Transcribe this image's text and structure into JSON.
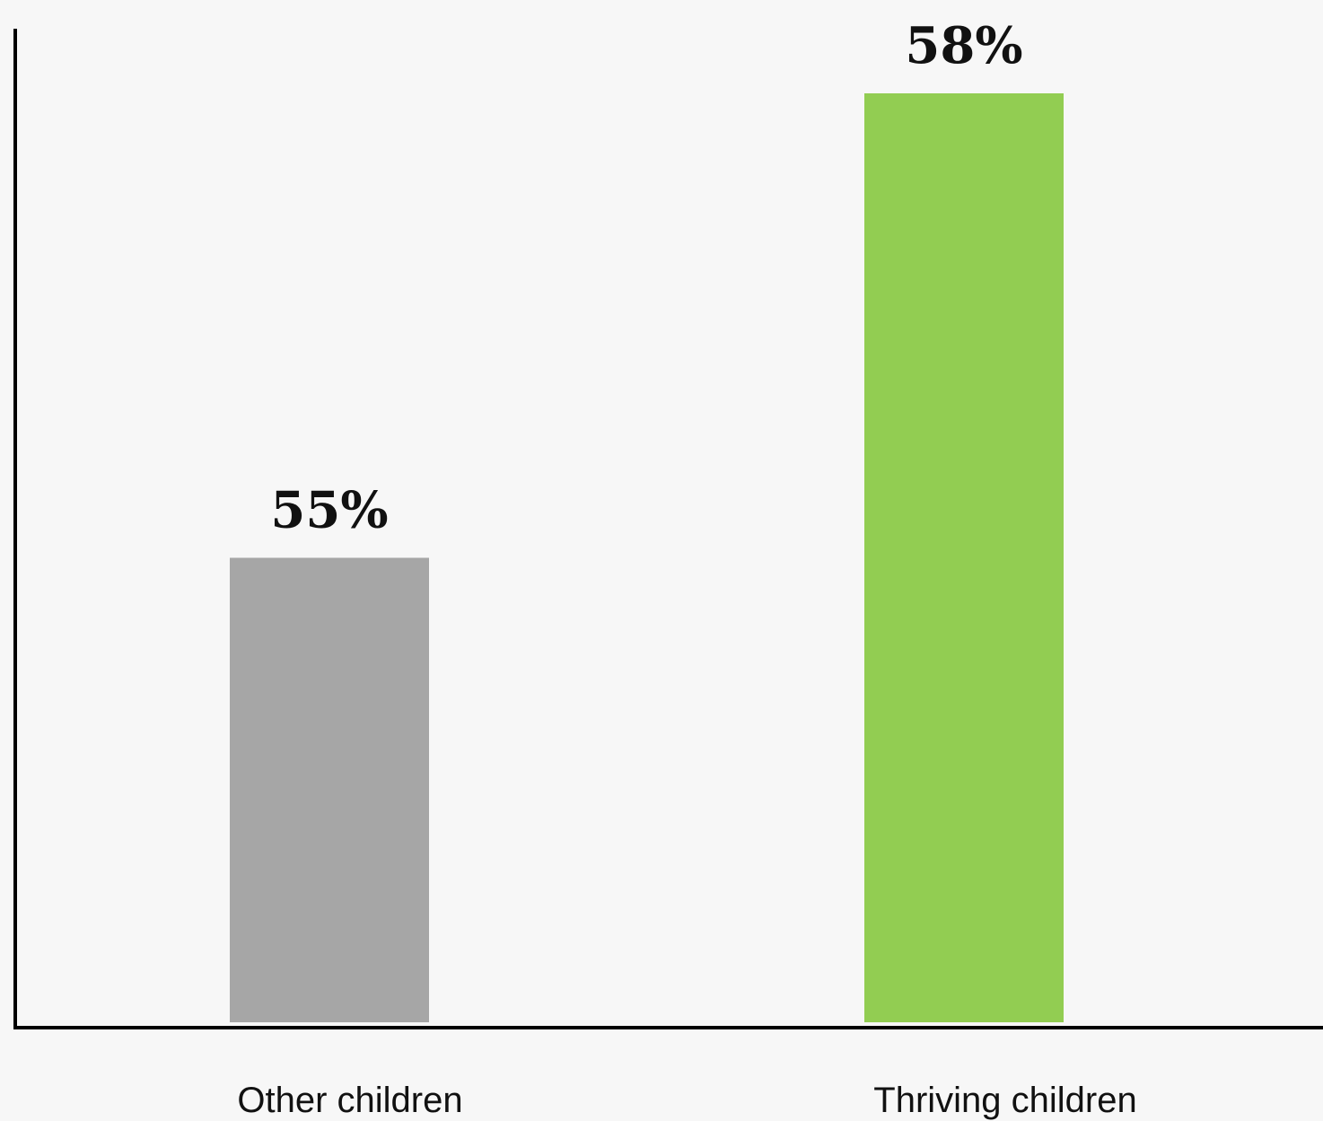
{
  "chart_data": {
    "type": "bar",
    "categories": [
      "Other children",
      "Thriving children"
    ],
    "values": [
      55,
      58
    ],
    "value_labels": [
      "55%",
      "58%"
    ],
    "colors": [
      "#a6a6a6",
      "#92cd52"
    ],
    "ylim": [
      52,
      59
    ],
    "grid": false,
    "legend": "none"
  },
  "colors": {
    "background": "#f7f7f7",
    "axis": "#000000"
  }
}
